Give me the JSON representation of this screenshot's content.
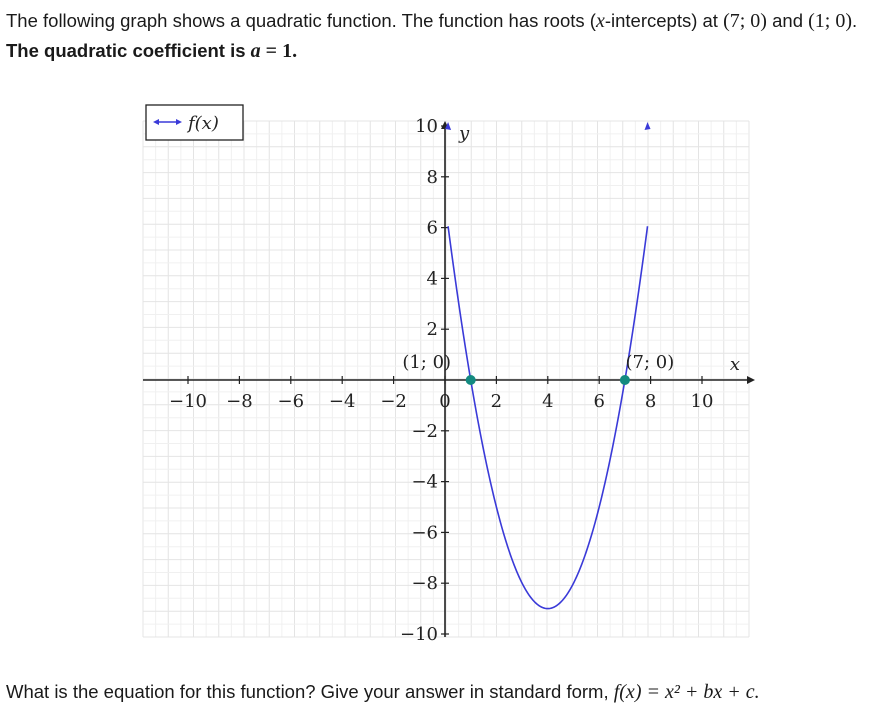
{
  "problem": {
    "intro_1": "The following graph shows a quadratic function. The function has roots (",
    "intro_x": "x",
    "intro_2": "-intercepts) at ",
    "root1": "(7; 0)",
    "intro_and": " and ",
    "root2": "(1; 0)",
    "intro_3": ". ",
    "coef_text": "The quadratic coefficient is ",
    "coef_var": "a",
    "coef_eq": " = 1.",
    "question_1": "What is the equation for this function? Give your answer in standard form, ",
    "question_formula": "f(x) = x² + bx + c."
  },
  "chart_data": {
    "type": "line",
    "function": "f(x) = (x - 1)(x - 7)",
    "legend": "f(x)",
    "legend_position": "top-left",
    "xlabel": "x",
    "ylabel": "y",
    "xlim": [
      -12,
      12
    ],
    "ylim": [
      -10,
      10
    ],
    "grid": true,
    "x_ticks": [
      -10,
      -8,
      -6,
      -4,
      -2,
      0,
      2,
      4,
      6,
      8,
      10
    ],
    "x_tick_labels": [
      "−10",
      "−8",
      "−6",
      "−4",
      "−2",
      "0",
      "2",
      "4",
      "6",
      "8",
      "10"
    ],
    "y_ticks": [
      -10,
      -8,
      -6,
      -4,
      -2,
      2,
      4,
      6,
      8,
      10
    ],
    "y_tick_labels": [
      "−10",
      "−8",
      "−6",
      "−4",
      "−2",
      "2",
      "4",
      "6",
      "8",
      "10"
    ],
    "series": [
      {
        "name": "f(x)",
        "color": "#3a3ad8",
        "points": [
          [
            0.12,
            10
          ],
          [
            1,
            0
          ],
          [
            2,
            -5
          ],
          [
            3,
            -8
          ],
          [
            4,
            -9
          ],
          [
            5,
            -8
          ],
          [
            6,
            -5
          ],
          [
            7,
            0
          ],
          [
            7.88,
            10
          ]
        ]
      }
    ],
    "points": [
      {
        "x": 1,
        "y": 0,
        "label": "(1; 0)"
      },
      {
        "x": 7,
        "y": 0,
        "label": "(7; 0)"
      }
    ],
    "vertex": {
      "x": 4,
      "y": -9
    },
    "point_color": "#138a80"
  }
}
